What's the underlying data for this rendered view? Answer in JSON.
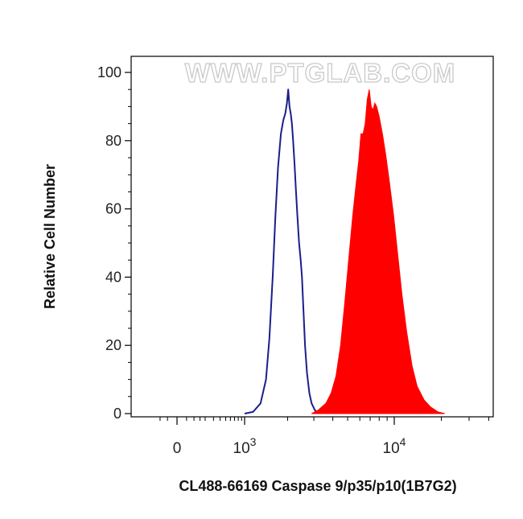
{
  "watermark": "WWW.PTGLAB.COM",
  "chart_data": {
    "type": "area",
    "xlabel": "CL488-66169 Caspase 9/p35/p10(1B7G2)",
    "ylabel": "Relative Cell Number",
    "x_scale": "biexponential",
    "xlim": [
      -200,
      40000
    ],
    "ylim": [
      0,
      100
    ],
    "y_ticks": [
      0,
      20,
      40,
      60,
      80,
      100
    ],
    "x_tick_labels": [
      {
        "value": 0,
        "text": "0"
      },
      {
        "value": 1000,
        "base": "10",
        "exp": "3"
      },
      {
        "value": 10000,
        "base": "10",
        "exp": "4"
      }
    ],
    "grid": false,
    "series": [
      {
        "style": "outline",
        "color": "#1a1f8a",
        "points": [
          [
            1000,
            0
          ],
          [
            1150,
            0.5
          ],
          [
            1300,
            3
          ],
          [
            1420,
            10
          ],
          [
            1500,
            22
          ],
          [
            1580,
            40
          ],
          [
            1650,
            58
          ],
          [
            1720,
            72
          ],
          [
            1800,
            82
          ],
          [
            1870,
            86
          ],
          [
            1930,
            88
          ],
          [
            1980,
            91
          ],
          [
            2020,
            95
          ],
          [
            2060,
            90
          ],
          [
            2100,
            88
          ],
          [
            2140,
            85
          ],
          [
            2180,
            80
          ],
          [
            2230,
            73
          ],
          [
            2280,
            65
          ],
          [
            2330,
            58
          ],
          [
            2390,
            50
          ],
          [
            2450,
            45
          ],
          [
            2500,
            40
          ],
          [
            2560,
            30
          ],
          [
            2620,
            20
          ],
          [
            2700,
            12
          ],
          [
            2800,
            6
          ],
          [
            2900,
            3
          ],
          [
            3050,
            1
          ],
          [
            3250,
            0
          ]
        ]
      },
      {
        "style": "filled",
        "color": "#ff0000",
        "points": [
          [
            2900,
            0
          ],
          [
            3200,
            1
          ],
          [
            3600,
            3
          ],
          [
            3900,
            6
          ],
          [
            4200,
            11
          ],
          [
            4500,
            20
          ],
          [
            4800,
            33
          ],
          [
            5100,
            46
          ],
          [
            5400,
            58
          ],
          [
            5700,
            68
          ],
          [
            5900,
            74
          ],
          [
            6100,
            82
          ],
          [
            6300,
            82
          ],
          [
            6500,
            85
          ],
          [
            6700,
            92
          ],
          [
            6900,
            95
          ],
          [
            7100,
            90
          ],
          [
            7300,
            89
          ],
          [
            7500,
            91
          ],
          [
            7700,
            90
          ],
          [
            8000,
            87
          ],
          [
            8400,
            82
          ],
          [
            8800,
            76
          ],
          [
            9300,
            68
          ],
          [
            9900,
            58
          ],
          [
            10500,
            47
          ],
          [
            11200,
            35
          ],
          [
            12000,
            24
          ],
          [
            13000,
            14
          ],
          [
            14000,
            8
          ],
          [
            15500,
            4
          ],
          [
            17000,
            2
          ],
          [
            19000,
            0.5
          ],
          [
            21000,
            0
          ]
        ]
      }
    ]
  }
}
